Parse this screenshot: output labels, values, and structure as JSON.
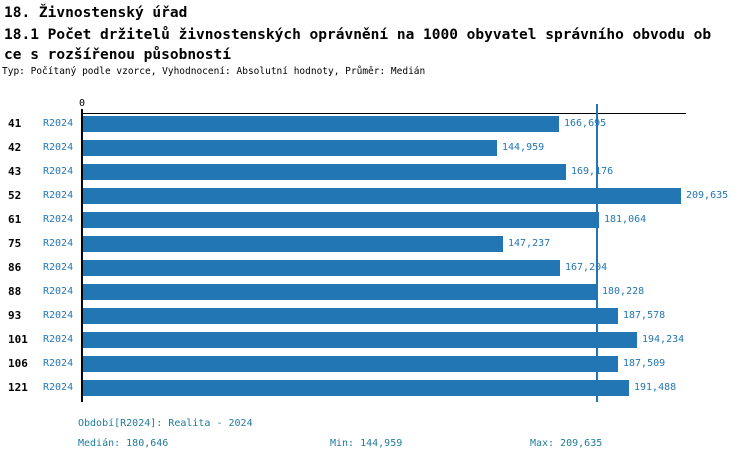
{
  "header": {
    "section_title": "18. Živnostenský úřad",
    "indicator_title_line1": "18.1 Počet držitelů živnostenských oprávnění na 1000 obyvatel správního obvodu ob",
    "indicator_title_line2": "ce s rozšířenou působností",
    "meta": "Typ: Počítaný podle vzorce, Vyhodnocení: Absolutní hodnoty, Průměr: Medián"
  },
  "chart_data": {
    "type": "bar",
    "orientation": "horizontal",
    "axis_zero_label": "0",
    "series_name": "R2024",
    "categories": [
      "41",
      "42",
      "43",
      "52",
      "61",
      "75",
      "86",
      "88",
      "93",
      "101",
      "106",
      "121"
    ],
    "values": [
      166.695,
      144.959,
      169.176,
      209.635,
      181.064,
      147.237,
      167.204,
      180.228,
      187.578,
      194.234,
      187.509,
      191.488
    ],
    "value_labels": [
      "166,695",
      "144,959",
      "169,176",
      "209,635",
      "181,064",
      "147,237",
      "167,204",
      "180,228",
      "187,578",
      "194,234",
      "187,509",
      "191,488"
    ],
    "median_value": 180.646,
    "min_value": 144.959,
    "max_value": 209.635,
    "xlim": [
      0,
      209.635
    ],
    "grid": false,
    "legend": "none",
    "bar_color": "#2276b4",
    "median_line_color": "#2276b4",
    "label_color": "#2276b4",
    "footer_text_color": "#1e7b9c"
  },
  "footer": {
    "period": "Období[R2024]: Realita - 2024",
    "median": "Medián: 180,646",
    "min": "Min: 144,959",
    "max": "Max: 209,635"
  }
}
